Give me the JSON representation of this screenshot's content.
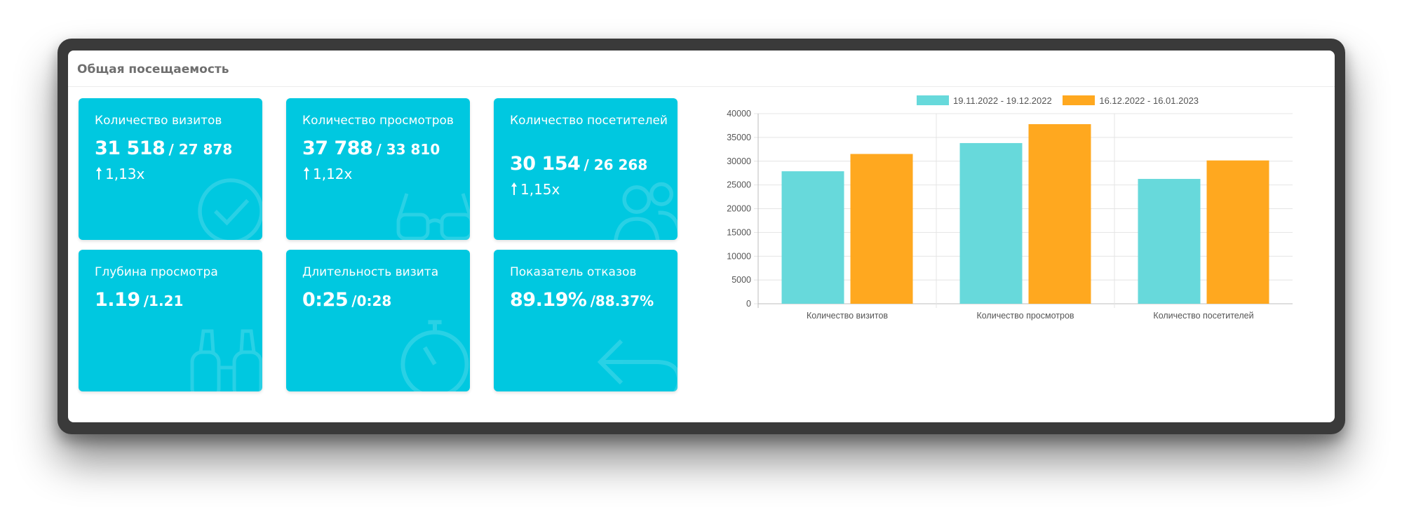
{
  "panel": {
    "title": "Общая посещаемость"
  },
  "tiles": [
    {
      "label": "Количество визитов",
      "value": "31 518",
      "prev": "/ 27 878",
      "ratio": "1,13x",
      "icon": "checkmark-circle-icon"
    },
    {
      "label": "Количество просмотров",
      "value": "37 788",
      "prev": "/ 33 810",
      "ratio": "1,12x",
      "icon": "glasses-icon"
    },
    {
      "label": "Количество посетителей",
      "value": "30 154",
      "prev": "/ 26 268",
      "ratio": "1,15x",
      "icon": "people-icon"
    },
    {
      "label": "Глубина просмотра",
      "value": "1.19",
      "prev": "/1.21",
      "icon": "binoculars-icon"
    },
    {
      "label": "Длительность визита",
      "value": "0:25",
      "prev": "/0:28",
      "icon": "stopwatch-icon"
    },
    {
      "label": "Показатель отказов",
      "value": "89.19%",
      "prev": "/88.37%",
      "icon": "return-arrow-icon"
    }
  ],
  "colors": {
    "tile": "#00c8e0",
    "series1": "#67d9db",
    "series2": "#ffa81f"
  },
  "chart_data": {
    "type": "bar",
    "categories": [
      "Количество визитов",
      "Количество просмотров",
      "Количество посетителей"
    ],
    "series": [
      {
        "name": "19.11.2022 - 19.12.2022",
        "values": [
          27878,
          33810,
          26268
        ]
      },
      {
        "name": "16.12.2022 - 16.01.2023",
        "values": [
          31518,
          37788,
          30154
        ]
      }
    ],
    "yticks": [
      "40000",
      "35000",
      "30000",
      "25000",
      "20000",
      "15000",
      "10000",
      "5000",
      "0"
    ],
    "ylim": [
      0,
      40000
    ],
    "grid": true,
    "legend": "top"
  }
}
